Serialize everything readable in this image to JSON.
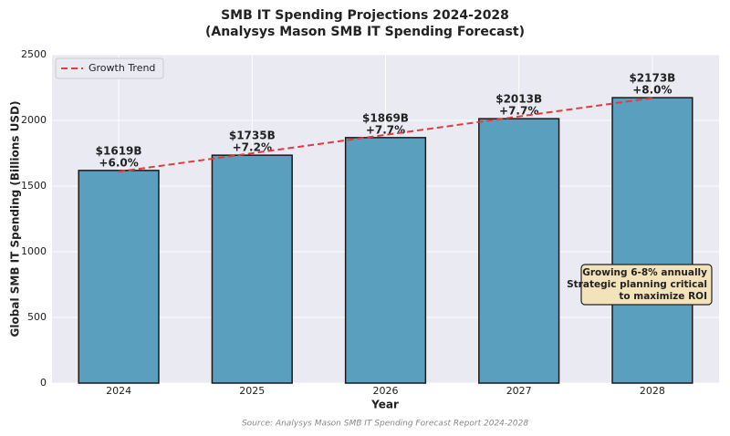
{
  "chart_data": {
    "type": "bar",
    "title": "SMB IT Spending Projections 2024-2028",
    "subtitle": "(Analysys Mason SMB IT Spending Forecast)",
    "x_label": "Year",
    "y_label": "Global SMB IT Spending (Billions USD)",
    "categories": [
      "2024",
      "2025",
      "2026",
      "2027",
      "2028"
    ],
    "values": [
      1619,
      1735,
      1869,
      2013,
      2173
    ],
    "value_labels": [
      "$1619B",
      "$1735B",
      "$1869B",
      "$2013B",
      "$2173B"
    ],
    "growth_labels": [
      "+6.0%",
      "+7.2%",
      "+7.7%",
      "+7.7%",
      "+8.0%"
    ],
    "color": "#5a9fbd",
    "trend": {
      "type": "line",
      "name": "Growth Trend",
      "color": "#e03c3c",
      "values": [
        1610,
        1750,
        1890,
        2030,
        2170
      ]
    },
    "ylim": [
      0,
      2500
    ],
    "yticks": [
      0,
      500,
      1000,
      1500,
      2000,
      2500
    ],
    "grid": true,
    "legend": "upper left",
    "annotation": [
      "Growing 6-8% annually",
      "Strategic planning critical",
      "to maximize ROI"
    ],
    "source": "Source: Analysys Mason SMB IT Spending Forecast Report 2024-2028"
  }
}
